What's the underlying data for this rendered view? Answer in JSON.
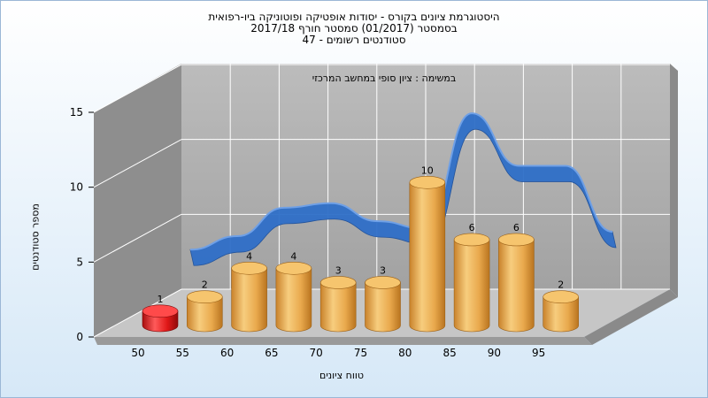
{
  "chart_data": {
    "type": "bar",
    "title_lines": [
      "היסטוגרמת ציונים בקורס - יסודות אופטיקה ופוטוניקה ביו-רפואית",
      "בסמסטר  (01/2017)  סמסטר חורף 2017/18",
      "סטודנטים רשומים - 47"
    ],
    "annotation": "במשימה : ציון סופי במחשב המרכזי",
    "xlabel": "טווח ציונים",
    "ylabel": "מספר סטודנטים",
    "categories": [
      "50",
      "55",
      "60",
      "65",
      "70",
      "75",
      "80",
      "85",
      "90",
      "95"
    ],
    "values": [
      1,
      2,
      4,
      4,
      3,
      3,
      10,
      6,
      6,
      2
    ],
    "highlight_index": 0,
    "ylim": [
      0,
      15
    ],
    "yticks": [
      0,
      5,
      10,
      15
    ],
    "grid": true,
    "trend_line": [
      2.7,
      3.6,
      5.5,
      5.8,
      4.6,
      4.1,
      11.8,
      8.3,
      8.3,
      3.9
    ],
    "colors": {
      "bar": "#e8a64a",
      "bar_highlight": "#e01818",
      "trend": "#2f6fc8",
      "back_wall": "#a8a8a8",
      "side_wall": "#8c8c8c",
      "floor": "#c4c4c4"
    }
  }
}
